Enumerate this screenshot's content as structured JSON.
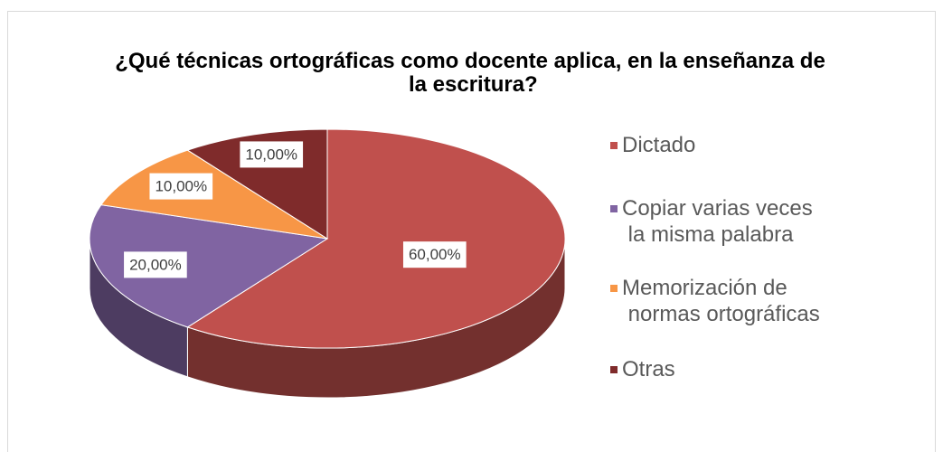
{
  "chart_data": {
    "type": "pie3d",
    "title": "¿Qué técnicas ortográficas como docente aplica, en la enseñanza de la escritura?",
    "categories": [
      "Dictado",
      "Copiar varias veces la misma palabra",
      "Memorización de normas ortográficas",
      "Otras"
    ],
    "values": [
      60,
      20,
      10,
      10
    ],
    "value_labels": [
      "60,00%",
      "20,00%",
      "10,00%",
      "10,00%"
    ],
    "colors": [
      "#c0504d",
      "#8064a2",
      "#f79646",
      "#7f2b2b"
    ],
    "legend": "right"
  }
}
